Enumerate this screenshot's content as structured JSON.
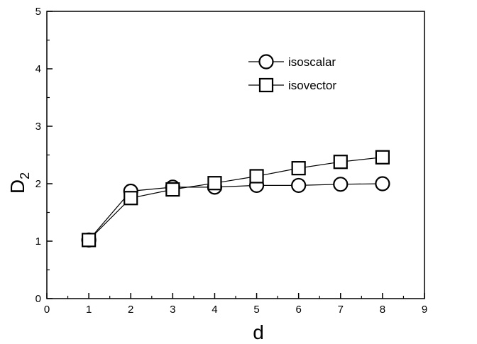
{
  "chart_data": {
    "type": "scatter",
    "xlabel": "d",
    "ylabel": "D",
    "ylabel_subscript": "2",
    "xlim": [
      0,
      9
    ],
    "ylim": [
      0,
      5
    ],
    "x_ticks": [
      0,
      1,
      2,
      3,
      4,
      5,
      6,
      7,
      8,
      9
    ],
    "y_ticks": [
      0,
      1,
      2,
      3,
      4,
      5
    ],
    "grid": false,
    "legend_position": "top-right",
    "series": [
      {
        "name": "isoscalar",
        "marker": "circle",
        "x": [
          1,
          2,
          3,
          4,
          5,
          6,
          7,
          8
        ],
        "y": [
          1.02,
          1.87,
          1.94,
          1.94,
          1.97,
          1.97,
          1.99,
          2.0
        ]
      },
      {
        "name": "isovector",
        "marker": "square",
        "x": [
          1,
          2,
          3,
          4,
          5,
          6,
          7,
          8
        ],
        "y": [
          1.02,
          1.75,
          1.9,
          2.01,
          2.13,
          2.27,
          2.38,
          2.46
        ]
      }
    ],
    "colors": {
      "stroke": "#000000",
      "background": "#ffffff"
    }
  }
}
